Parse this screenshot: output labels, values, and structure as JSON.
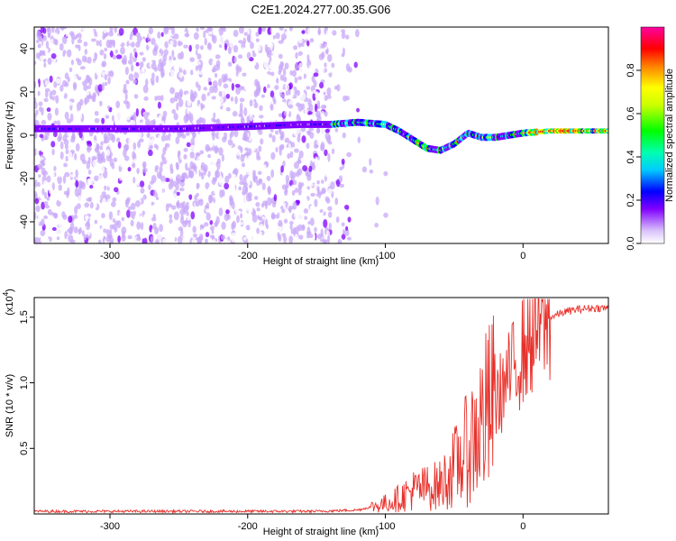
{
  "title": "C2E1.2024.277.00.35.G06",
  "chart_data": [
    {
      "type": "heatmap",
      "xlabel": "Height of straight line (km)",
      "ylabel": "Frequency (Hz)",
      "xlim": [
        -355,
        62
      ],
      "ylim": [
        -50,
        50
      ],
      "x_ticks": [
        -300,
        -200,
        -100,
        0
      ],
      "x_tick_labels": [
        "-300",
        "-200",
        "-100",
        "0"
      ],
      "y_ticks": [
        -40,
        -20,
        0,
        20,
        40
      ],
      "y_tick_labels": [
        "-40",
        "-20",
        "0",
        "20",
        "40"
      ],
      "colorbar": {
        "label": "Normalized spectral amplitude",
        "range": [
          0,
          1
        ],
        "ticks": [
          0.0,
          0.2,
          0.4,
          0.6,
          0.8
        ],
        "tick_labels": [
          "0.0",
          "0.2",
          "0.4",
          "0.6",
          "0.8"
        ],
        "colors": [
          "#ffffff",
          "#c8a8f8",
          "#8000ff",
          "#0000ff",
          "#00e0ff",
          "#00ff00",
          "#ffff00",
          "#ff8000",
          "#ff0000",
          "#ff00a0"
        ]
      },
      "ridge": {
        "x": [
          -355,
          -300,
          -250,
          -200,
          -160,
          -140,
          -120,
          -100,
          -90,
          -80,
          -70,
          -60,
          -50,
          -40,
          -30,
          -20,
          -10,
          0,
          20,
          40,
          62
        ],
        "frequency": [
          3,
          3,
          3,
          4,
          5,
          5,
          6,
          5,
          2,
          -2,
          -6,
          -7,
          -4,
          1,
          -1,
          -1,
          0,
          1,
          2,
          2,
          2
        ]
      },
      "grid": false
    },
    {
      "type": "line",
      "xlabel": "Height of straight line (km)",
      "ylabel": "SNR (10 * v/v)",
      "scale_label": "(x10",
      "scale_exponent": "4",
      "scale_suffix": ")",
      "xlim": [
        -355,
        62
      ],
      "ylim": [
        0,
        1.65
      ],
      "x_ticks": [
        -300,
        -200,
        -100,
        0
      ],
      "x_tick_labels": [
        "-300",
        "-200",
        "-100",
        "0"
      ],
      "y_ticks": [
        0.5,
        1.0,
        1.5
      ],
      "y_tick_labels": [
        "0.5",
        "1.0",
        "1.5"
      ],
      "series": [
        {
          "color": "#e8302a",
          "x": [
            -355,
            -300,
            -250,
            -200,
            -150,
            -120,
            -100,
            -90,
            -80,
            -70,
            -60,
            -50,
            -40,
            -30,
            -20,
            -10,
            0,
            10,
            20,
            30,
            40,
            50,
            62
          ],
          "y": [
            0.02,
            0.02,
            0.02,
            0.02,
            0.02,
            0.03,
            0.08,
            0.12,
            0.18,
            0.2,
            0.22,
            0.35,
            0.5,
            0.7,
            0.85,
            1.05,
            1.25,
            1.42,
            1.5,
            1.54,
            1.56,
            1.57,
            1.57
          ]
        }
      ],
      "grid": false
    }
  ]
}
